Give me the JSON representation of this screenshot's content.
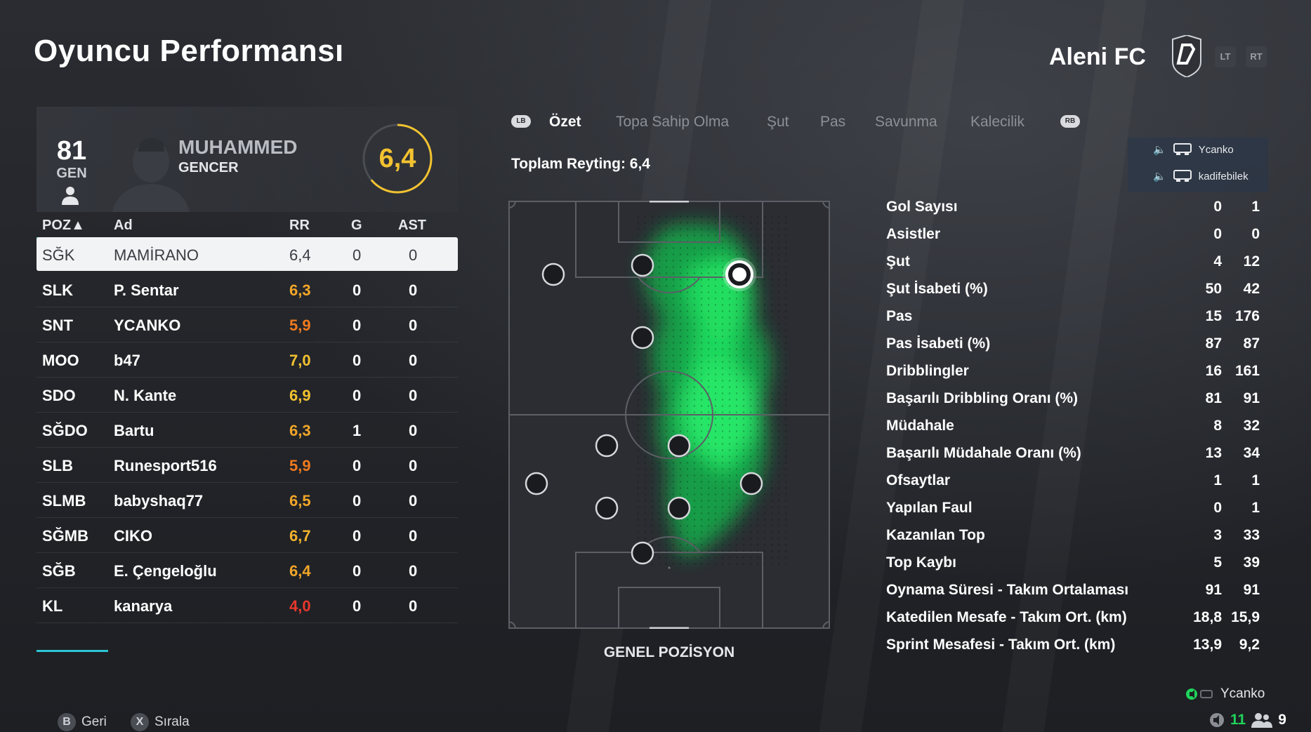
{
  "header": {
    "title": "Oyuncu Performansı",
    "club_name": "Aleni FC",
    "lt_label": "LT",
    "rt_label": "RT"
  },
  "player": {
    "overall": "81",
    "position_abbr": "GEN",
    "first_name": "MUHAMMED",
    "last_name": "GENCER",
    "rating": "6,4"
  },
  "table": {
    "headers": {
      "pos": "POZ▲",
      "name": "Ad",
      "rr": "RR",
      "g": "G",
      "ast": "AST"
    },
    "rows": [
      {
        "pos": "SĞK",
        "name": "MAMİRANO",
        "rr": "6,4",
        "g": "0",
        "ast": "0",
        "rr_color": "#3a3c42"
      },
      {
        "pos": "SLK",
        "name": "P. Sentar",
        "rr": "6,3",
        "g": "0",
        "ast": "0",
        "rr_color": "#f2a628"
      },
      {
        "pos": "SNT",
        "name": "YCANKO",
        "rr": "5,9",
        "g": "0",
        "ast": "0",
        "rr_color": "#f07a1e"
      },
      {
        "pos": "MOO",
        "name": "b47",
        "rr": "7,0",
        "g": "0",
        "ast": "0",
        "rr_color": "#f2c230"
      },
      {
        "pos": "SDO",
        "name": "N. Kante",
        "rr": "6,9",
        "g": "0",
        "ast": "0",
        "rr_color": "#f2c230"
      },
      {
        "pos": "SĞDO",
        "name": "Bartu",
        "rr": "6,3",
        "g": "1",
        "ast": "0",
        "rr_color": "#f2a628"
      },
      {
        "pos": "SLB",
        "name": "Runesport516",
        "rr": "5,9",
        "g": "0",
        "ast": "0",
        "rr_color": "#f07a1e"
      },
      {
        "pos": "SLMB",
        "name": "babyshaq77",
        "rr": "6,5",
        "g": "0",
        "ast": "0",
        "rr_color": "#f2a628"
      },
      {
        "pos": "SĞMB",
        "name": "CIKO",
        "rr": "6,7",
        "g": "0",
        "ast": "0",
        "rr_color": "#f2b22c"
      },
      {
        "pos": "SĞB",
        "name": "E. Çengeloğlu",
        "rr": "6,4",
        "g": "0",
        "ast": "0",
        "rr_color": "#f2a628"
      },
      {
        "pos": "KL",
        "name": "kanarya",
        "rr": "4,0",
        "g": "0",
        "ast": "0",
        "rr_color": "#e8372c"
      }
    ]
  },
  "tabs": {
    "lb_label": "LB",
    "rb_label": "RB",
    "items": [
      {
        "label": "Özet",
        "active": true
      },
      {
        "label": "Topa Sahip Olma",
        "active": false
      },
      {
        "label": "Şut",
        "active": false
      },
      {
        "label": "Pas",
        "active": false
      },
      {
        "label": "Savunma",
        "active": false
      },
      {
        "label": "Kalecilik",
        "active": false
      }
    ]
  },
  "total_rating": "Toplam Reyting: 6,4",
  "pitch_label": "GENEL POZİSYON",
  "chat": {
    "users": [
      {
        "name": "Ycanko"
      },
      {
        "name": "kadifebilek"
      }
    ]
  },
  "stats": [
    {
      "label": "Gol Sayısı",
      "v1": "0",
      "v2": "1"
    },
    {
      "label": "Asistler",
      "v1": "0",
      "v2": "0"
    },
    {
      "label": "Şut",
      "v1": "4",
      "v2": "12"
    },
    {
      "label": "Şut İsabeti (%)",
      "v1": "50",
      "v2": "42"
    },
    {
      "label": "Pas",
      "v1": "15",
      "v2": "176"
    },
    {
      "label": "Pas İsabeti (%)",
      "v1": "87",
      "v2": "87"
    },
    {
      "label": "Dribblingler",
      "v1": "16",
      "v2": "161"
    },
    {
      "label": "Başarılı Dribbling Oranı (%)",
      "v1": "81",
      "v2": "91"
    },
    {
      "label": "Müdahale",
      "v1": "8",
      "v2": "32"
    },
    {
      "label": "Başarılı Müdahale Oranı (%)",
      "v1": "13",
      "v2": "34"
    },
    {
      "label": "Ofsaytlar",
      "v1": "1",
      "v2": "1"
    },
    {
      "label": "Yapılan Faul",
      "v1": "0",
      "v2": "1"
    },
    {
      "label": "Kazanılan Top",
      "v1": "3",
      "v2": "33"
    },
    {
      "label": "Top Kaybı",
      "v1": "5",
      "v2": "39"
    },
    {
      "label": "Oynama Süresi - Takım Ortalaması",
      "v1": "91",
      "v2": "91"
    },
    {
      "label": "Katedilen Mesafe - Takım Ort. (km)",
      "v1": "18,8",
      "v2": "15,9"
    },
    {
      "label": "Sprint Mesafesi - Takım Ort. (km)",
      "v1": "13,9",
      "v2": "9,2"
    }
  ],
  "footer": {
    "back_key": "B",
    "back_label": "Geri",
    "sort_key": "X",
    "sort_label": "Sırala",
    "host_user": "Ycanko",
    "count_a": "11",
    "count_b": "9"
  },
  "colors": {
    "accent": "#2ec4d4",
    "rating": "#f2c230",
    "heatmap": "#1fd45a"
  }
}
